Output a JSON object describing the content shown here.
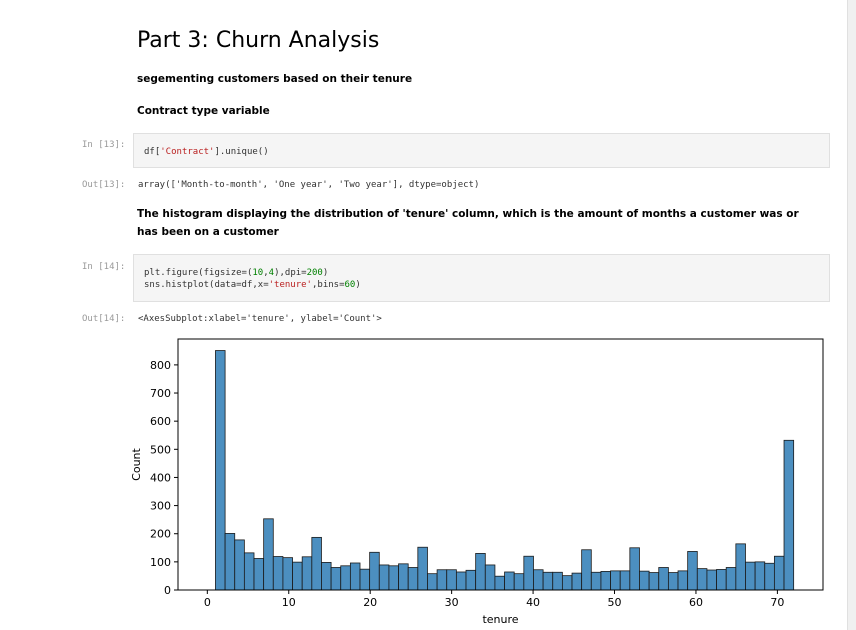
{
  "notebook": {
    "heading": "Part 3: Churn Analysis",
    "subheading": "segementing customers based on their tenure",
    "contract_label": "Contract type variable",
    "cell13": {
      "in_prompt": "In [13]:",
      "code_prefix": "df[",
      "code_str": "'Contract'",
      "code_suffix": "].unique()",
      "out_prompt": "Out[13]:",
      "output": "array(['Month-to-month', 'One year', 'Two year'], dtype=object)"
    },
    "histogram_description": "The histogram displaying the distribution of 'tenure' column, which is the amount of months a customer was or has been on a customer",
    "cell14": {
      "in_prompt": "In [14]:",
      "line1_a": "plt.figure(figsize=(",
      "line1_n1": "10",
      "line1_b": ",",
      "line1_n2": "4",
      "line1_c": "),dpi=",
      "line1_n3": "200",
      "line1_d": ")",
      "line2_a": "sns.histplot(data=df,x=",
      "line2_str": "'tenure'",
      "line2_b": ",bins=",
      "line2_n": "60",
      "line2_c": ")",
      "out_prompt": "Out[14]:",
      "output": "<AxesSubplot:xlabel='tenure', ylabel='Count'>"
    }
  },
  "chart_data": {
    "type": "bar",
    "xlabel": "tenure",
    "ylabel": "Count",
    "xlim": [
      -3.6,
      75.6
    ],
    "ylim": [
      0,
      892
    ],
    "xticks": [
      0,
      10,
      20,
      30,
      40,
      50,
      60,
      70
    ],
    "yticks": [
      0,
      100,
      200,
      300,
      400,
      500,
      600,
      700,
      800
    ],
    "bin_start": 1,
    "bin_width": 1.1833,
    "bar_color": "#4c8fc0",
    "values": [
      851,
      201,
      178,
      132,
      112,
      253,
      119,
      115,
      99,
      118,
      187,
      98,
      80,
      86,
      96,
      74,
      134,
      89,
      86,
      93,
      80,
      152,
      58,
      72,
      72,
      64,
      70,
      130,
      89,
      49,
      64,
      58,
      120,
      72,
      63,
      63,
      51,
      60,
      143,
      63,
      66,
      68,
      68,
      150,
      67,
      62,
      80,
      62,
      68,
      137,
      76,
      71,
      73,
      80,
      164,
      99,
      100,
      95,
      120,
      532
    ]
  }
}
